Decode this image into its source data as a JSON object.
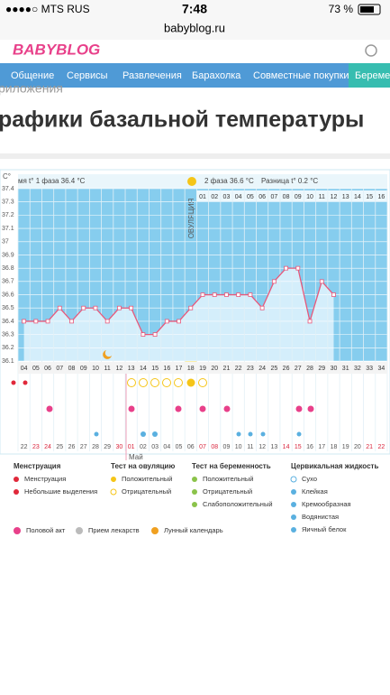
{
  "status_bar": {
    "carrier": "●●●●○ MTS RUS",
    "time": "7:48",
    "battery": "73 %"
  },
  "url": "babyblog.ru",
  "logo": "BABYBLOG",
  "nav": [
    "Общение",
    "Сервисы",
    "Развлечения",
    "Барахолка",
    "Совместные покупки",
    "Беремен"
  ],
  "breadcrumb": "риложения",
  "page_title": "рафики базальной температуры",
  "chart_data": {
    "type": "line",
    "header": {
      "phase1": "мя t° 1 фаза 36.4 °C",
      "phase2": "2 фаза 36.6 °C",
      "difference": "Разница t° 0.2 °C",
      "ovulation": "ОВУЛЯЦИЯ"
    },
    "y_unit": "C°",
    "categories": [
      "04",
      "05",
      "06",
      "07",
      "08",
      "09",
      "10",
      "11",
      "12",
      "13",
      "14",
      "15",
      "16",
      "17",
      "18",
      "19",
      "20",
      "21",
      "22",
      "23",
      "24",
      "25",
      "26",
      "27",
      "28",
      "29",
      "30",
      "31",
      "32",
      "33",
      "34"
    ],
    "series": [
      {
        "color": "#e8587a",
        "values": [
          36.4,
          36.4,
          36.4,
          36.5,
          36.4,
          36.5,
          36.5,
          36.4,
          36.5,
          36.5,
          36.3,
          36.3,
          36.4,
          36.4,
          36.5,
          36.6,
          36.6,
          36.6,
          36.6,
          36.6,
          36.5,
          36.7,
          36.8,
          36.8,
          36.4,
          36.7,
          36.6,
          null,
          null,
          null,
          null
        ]
      }
    ],
    "phase2_days": [
      "01",
      "02",
      "03",
      "04",
      "05",
      "06",
      "07",
      "08",
      "09",
      "10",
      "11",
      "12",
      "13",
      "14",
      "15",
      "16"
    ],
    "dates": [
      "22",
      "23",
      "24",
      "25",
      "26",
      "27",
      "28",
      "29",
      "30",
      "01",
      "02",
      "03",
      "04",
      "05",
      "06",
      "07",
      "08",
      "09",
      "10",
      "11",
      "12",
      "13",
      "14",
      "15",
      "16",
      "17",
      "18",
      "19",
      "20",
      "21",
      "22"
    ],
    "date_colors": [
      "#555",
      "#d9263e",
      "#d9263e",
      "#555",
      "#555",
      "#555",
      "#555",
      "#555",
      "#d9263e",
      "#d9263e",
      "#555",
      "#555",
      "#555",
      "#555",
      "#555",
      "#d9263e",
      "#d9263e",
      "#555",
      "#555",
      "#555",
      "#555",
      "#555",
      "#d9263e",
      "#d9263e",
      "#555",
      "#555",
      "#555",
      "#555",
      "#555",
      "#d9263e",
      "#d9263e"
    ],
    "month_label": "Май",
    "ylim": [
      36.1,
      37.4
    ],
    "yticks": [
      36.1,
      36.2,
      36.3,
      36.4,
      36.5,
      36.6,
      36.7,
      36.8,
      36.9,
      37,
      37.1,
      37.2,
      37.3,
      37.4
    ],
    "grid": true
  },
  "legend": {
    "menstruation": {
      "title": "Менструация",
      "items": [
        "Менструация",
        "Небольшие выделения"
      ]
    },
    "ovulation_test": {
      "title": "Тест на овуляцию",
      "items": [
        "Положительный",
        "Отрицательный"
      ]
    },
    "pregnancy_test": {
      "title": "Тест на беременность",
      "items": [
        "Положительный",
        "Отрицательный",
        "Слабоположительный"
      ]
    },
    "cervical_fluid": {
      "title": "Цервикальная жидкость",
      "items": [
        "Сухо",
        "Клейкая",
        "Кремообразная",
        "Водянистая",
        "Яичный белок"
      ]
    },
    "other": [
      "Половой акт",
      "Прием лекарств",
      "Лунный календарь"
    ]
  }
}
